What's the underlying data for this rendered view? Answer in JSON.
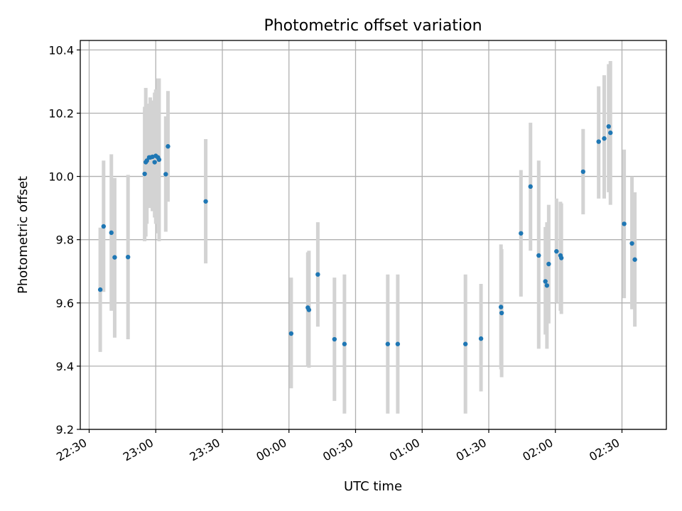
{
  "chart_data": {
    "type": "scatter",
    "title": "Photometric offset variation",
    "xlabel": "UTC time",
    "ylabel": "Photometric offset",
    "xlim_minutes": [
      -94,
      170
    ],
    "ylim": [
      9.2,
      10.43
    ],
    "x_ticks": [
      {
        "minute": -90,
        "label": "22:30"
      },
      {
        "minute": -60,
        "label": "23:00"
      },
      {
        "minute": -30,
        "label": "23:30"
      },
      {
        "minute": 0,
        "label": "00:00"
      },
      {
        "minute": 30,
        "label": "00:30"
      },
      {
        "minute": 60,
        "label": "01:00"
      },
      {
        "minute": 90,
        "label": "01:30"
      },
      {
        "minute": 120,
        "label": "02:00"
      },
      {
        "minute": 150,
        "label": "02:30"
      }
    ],
    "y_ticks": [
      {
        "value": 9.2,
        "label": "9.2"
      },
      {
        "value": 9.4,
        "label": "9.4"
      },
      {
        "value": 9.6,
        "label": "9.6"
      },
      {
        "value": 9.8,
        "label": "9.8"
      },
      {
        "value": 10.0,
        "label": "10.0"
      },
      {
        "value": 10.2,
        "label": "10.2"
      },
      {
        "value": 10.4,
        "label": "10.4"
      }
    ],
    "grid": true,
    "marker_color": "#1f77b4",
    "errorbar_color": "#d3d3d3",
    "points": [
      {
        "t": -85.0,
        "y": 9.642,
        "lo": 9.445,
        "hi": 9.838
      },
      {
        "t": -83.5,
        "y": 9.842,
        "lo": 9.635,
        "hi": 10.05
      },
      {
        "t": -80.0,
        "y": 9.822,
        "lo": 9.575,
        "hi": 10.07
      },
      {
        "t": -78.5,
        "y": 9.744,
        "lo": 9.49,
        "hi": 9.995
      },
      {
        "t": -72.5,
        "y": 9.745,
        "lo": 9.485,
        "hi": 10.005
      },
      {
        "t": -65.0,
        "y": 10.008,
        "lo": 9.795,
        "hi": 10.22
      },
      {
        "t": -64.5,
        "y": 10.045,
        "lo": 9.81,
        "hi": 10.28
      },
      {
        "t": -64.0,
        "y": 10.05,
        "lo": 9.85,
        "hi": 10.23
      },
      {
        "t": -63.0,
        "y": 10.06,
        "lo": 9.9,
        "hi": 10.23
      },
      {
        "t": -62.5,
        "y": 10.06,
        "lo": 9.92,
        "hi": 10.25
      },
      {
        "t": -61.5,
        "y": 10.062,
        "lo": 9.89,
        "hi": 10.24
      },
      {
        "t": -60.5,
        "y": 10.045,
        "lo": 9.87,
        "hi": 10.265
      },
      {
        "t": -60.0,
        "y": 10.065,
        "lo": 9.85,
        "hi": 10.275
      },
      {
        "t": -59.0,
        "y": 10.06,
        "lo": 9.82,
        "hi": 10.31
      },
      {
        "t": -58.5,
        "y": 10.053,
        "lo": 9.795,
        "hi": 10.31
      },
      {
        "t": -55.5,
        "y": 10.007,
        "lo": 9.825,
        "hi": 10.19
      },
      {
        "t": -54.5,
        "y": 10.095,
        "lo": 9.92,
        "hi": 10.27
      },
      {
        "t": -37.5,
        "y": 9.921,
        "lo": 9.725,
        "hi": 10.118
      },
      {
        "t": 1.0,
        "y": 9.503,
        "lo": 9.33,
        "hi": 9.68
      },
      {
        "t": 8.5,
        "y": 9.585,
        "lo": 9.4,
        "hi": 9.76
      },
      {
        "t": 9.0,
        "y": 9.578,
        "lo": 9.395,
        "hi": 9.765
      },
      {
        "t": 13.0,
        "y": 9.69,
        "lo": 9.525,
        "hi": 9.855
      },
      {
        "t": 20.5,
        "y": 9.485,
        "lo": 9.29,
        "hi": 9.68
      },
      {
        "t": 25.0,
        "y": 9.47,
        "lo": 9.25,
        "hi": 9.69
      },
      {
        "t": 44.5,
        "y": 9.47,
        "lo": 9.25,
        "hi": 9.69
      },
      {
        "t": 49.0,
        "y": 9.47,
        "lo": 9.25,
        "hi": 9.69
      },
      {
        "t": 79.5,
        "y": 9.47,
        "lo": 9.25,
        "hi": 9.69
      },
      {
        "t": 86.5,
        "y": 9.487,
        "lo": 9.32,
        "hi": 9.66
      },
      {
        "t": 95.5,
        "y": 9.587,
        "lo": 9.39,
        "hi": 9.785
      },
      {
        "t": 95.8,
        "y": 9.568,
        "lo": 9.365,
        "hi": 9.77
      },
      {
        "t": 104.5,
        "y": 9.82,
        "lo": 9.62,
        "hi": 10.02
      },
      {
        "t": 108.8,
        "y": 9.968,
        "lo": 9.765,
        "hi": 10.17
      },
      {
        "t": 112.5,
        "y": 9.75,
        "lo": 9.455,
        "hi": 10.05
      },
      {
        "t": 115.5,
        "y": 9.668,
        "lo": 9.5,
        "hi": 9.84
      },
      {
        "t": 116.2,
        "y": 9.655,
        "lo": 9.455,
        "hi": 9.855
      },
      {
        "t": 117.0,
        "y": 9.723,
        "lo": 9.535,
        "hi": 9.91
      },
      {
        "t": 120.5,
        "y": 9.763,
        "lo": 9.6,
        "hi": 9.93
      },
      {
        "t": 122.3,
        "y": 9.75,
        "lo": 9.575,
        "hi": 9.92
      },
      {
        "t": 122.7,
        "y": 9.742,
        "lo": 9.565,
        "hi": 9.915
      },
      {
        "t": 132.5,
        "y": 10.015,
        "lo": 9.88,
        "hi": 10.15
      },
      {
        "t": 139.5,
        "y": 10.11,
        "lo": 9.93,
        "hi": 10.285
      },
      {
        "t": 142.0,
        "y": 10.12,
        "lo": 9.93,
        "hi": 10.32
      },
      {
        "t": 144.0,
        "y": 10.158,
        "lo": 9.95,
        "hi": 10.355
      },
      {
        "t": 144.8,
        "y": 10.138,
        "lo": 9.91,
        "hi": 10.365
      },
      {
        "t": 151.0,
        "y": 9.85,
        "lo": 9.615,
        "hi": 10.085
      },
      {
        "t": 154.5,
        "y": 9.788,
        "lo": 9.58,
        "hi": 10.0
      },
      {
        "t": 155.8,
        "y": 9.737,
        "lo": 9.525,
        "hi": 9.95
      }
    ]
  }
}
